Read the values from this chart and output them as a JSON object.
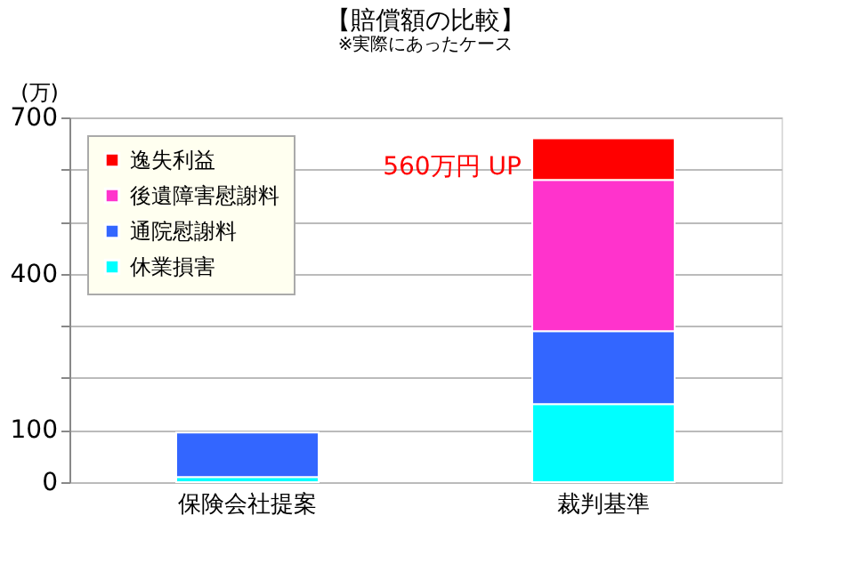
{
  "chart_data": {
    "type": "bar",
    "title": "【賠償額の比較】",
    "subtitle": "※実際にあったケース",
    "ylabel": "(万)",
    "categories": [
      "保険会社提案",
      "裁判基準"
    ],
    "stacked": true,
    "series": [
      {
        "name": "休業損害",
        "color": "#00ffff",
        "values": [
          10,
          150
        ]
      },
      {
        "name": "通院慰謝料",
        "color": "#3366ff",
        "values": [
          85,
          140
        ]
      },
      {
        "name": "後遺障害慰謝料",
        "color": "#ff33cc",
        "values": [
          null,
          290
        ]
      },
      {
        "name": "逸失利益",
        "color": "#ff0000",
        "values": [
          null,
          80
        ]
      }
    ],
    "ylim": [
      0,
      700
    ],
    "yticks": [
      0,
      100,
      {
        "value": 200,
        "label": null
      },
      {
        "value": 300,
        "label": null
      },
      400,
      {
        "value": 500,
        "label": null
      },
      {
        "value": 600,
        "label": null
      },
      700
    ],
    "grid": "y",
    "legend": "top left",
    "annotations": [
      "560万円 UP"
    ]
  }
}
